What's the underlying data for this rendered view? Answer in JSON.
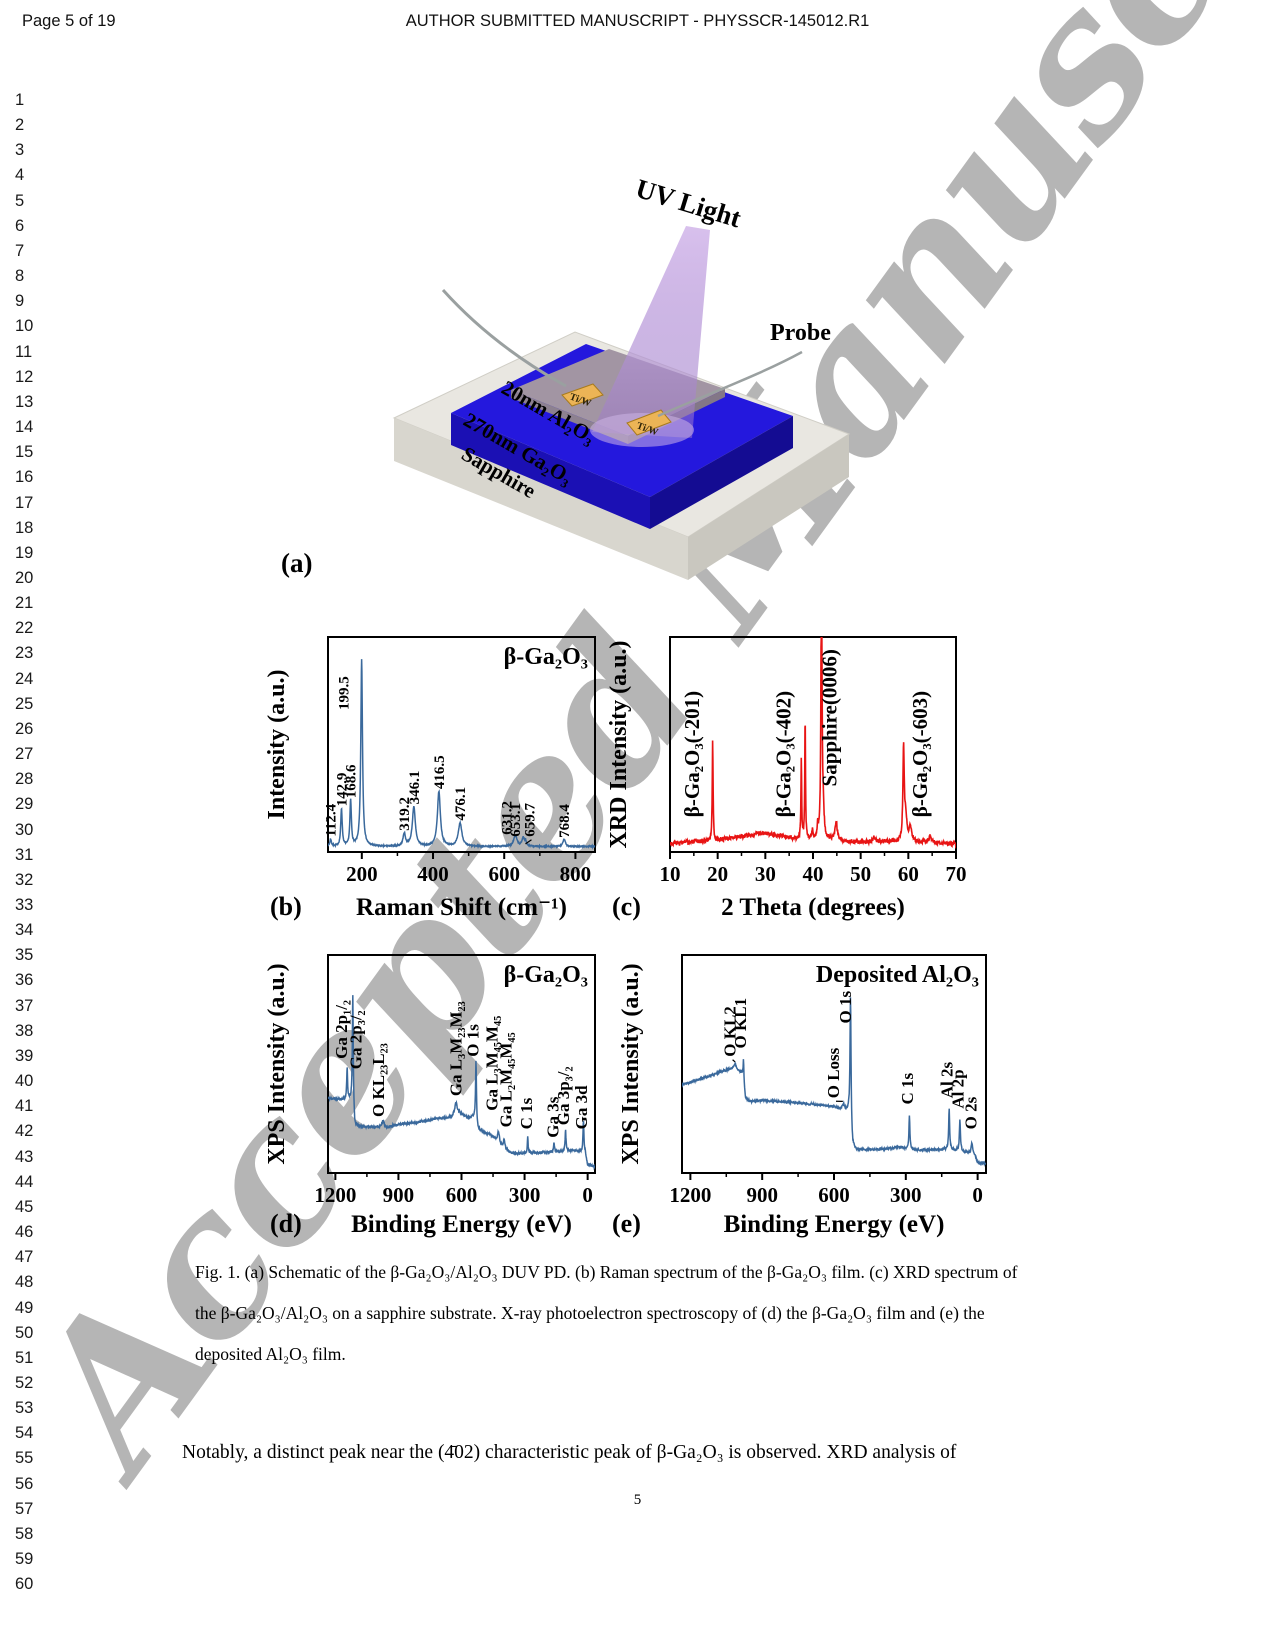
{
  "page": {
    "header_left": "Page 5 of 19",
    "header_center": "AUTHOR SUBMITTED MANUSCRIPT - PHYSSCR-145012.R1",
    "watermark": "Accepted Manuscript",
    "page_number": "5",
    "line_numbers": [
      1,
      2,
      3,
      4,
      5,
      6,
      7,
      8,
      9,
      10,
      11,
      12,
      13,
      14,
      15,
      16,
      17,
      18,
      19,
      20,
      21,
      22,
      23,
      24,
      25,
      26,
      27,
      28,
      29,
      30,
      31,
      32,
      33,
      34,
      35,
      36,
      37,
      38,
      39,
      40,
      41,
      42,
      43,
      44,
      45,
      46,
      47,
      48,
      49,
      50,
      51,
      52,
      53,
      54,
      55,
      56,
      57,
      58,
      59,
      60
    ]
  },
  "figure": {
    "panel_a": {
      "label": "(a)",
      "uv_light": "UV Light",
      "probe": "Probe",
      "electrode1": "Ti/W",
      "electrode2": "Ti/W",
      "layer_top": "20nm Al₂O₃",
      "layer_mid": "270nm Ga₂O₃",
      "layer_base": "Sapphire",
      "colors": {
        "substrate": "#e9e7e1",
        "film_blue": "#2418dd",
        "plate": "#a295a3",
        "pad_gold": "#ecb456",
        "beam": "#b293d8"
      }
    }
  },
  "caption": "Fig. 1. (a) Schematic of the β-Ga₂O₃/Al₂O₃ DUV PD. (b) Raman spectrum of the β-Ga₂O₃ film. (c) XRD spectrum of the β-Ga₂O₃/Al₂O₃ on a sapphire substrate. X-ray photoelectron spectroscopy of (d) the β-Ga₂O₃ film and (e) the deposited Al₂O₃ film.",
  "body_text": "Notably, a distinct peak near the  (4̄02)  characteristic peak of β-Ga₂O₃ is observed. XRD analysis of",
  "chart_data": [
    {
      "panel": "b",
      "type": "line",
      "title": "β-Ga₂O₃",
      "xlabel": "Raman Shift (cm⁻¹)",
      "ylabel": "Intensity (a.u.)",
      "panel_letter": "(b)",
      "color": "#3a699c",
      "seed": 7,
      "noise": 0.003,
      "axis": {
        "xlim": [
          105,
          855
        ],
        "ylim": [
          0,
          1.06
        ],
        "xticks": [
          200,
          400,
          600,
          800
        ],
        "xtick_labels": [
          "200",
          "400",
          "600",
          "800"
        ],
        "minor_ticks": [
          300,
          500,
          700
        ],
        "grid": false
      },
      "background": [
        [
          105,
          0.027
        ],
        [
          855,
          0.027
        ]
      ],
      "peaks": [
        {
          "c": 112.4,
          "h": 0.035,
          "w": 2.5
        },
        {
          "c": 142.9,
          "h": 0.185,
          "w": 2.5
        },
        {
          "c": 168.6,
          "h": 0.225,
          "w": 2.5
        },
        {
          "c": 199.5,
          "h": 0.92,
          "w": 2.8
        },
        {
          "c": 319.2,
          "h": 0.062,
          "w": 4
        },
        {
          "c": 346.1,
          "h": 0.195,
          "w": 5
        },
        {
          "c": 416.5,
          "h": 0.27,
          "w": 5
        },
        {
          "c": 476.1,
          "h": 0.115,
          "w": 6
        },
        {
          "c": 631.2,
          "h": 0.052,
          "w": 6
        },
        {
          "c": 653.1,
          "h": 0.04,
          "w": 3.5
        },
        {
          "c": 659.7,
          "h": 0.028,
          "w": 3
        },
        {
          "c": 768.4,
          "h": 0.036,
          "w": 4
        }
      ],
      "peak_labels": [
        {
          "text": "112.4",
          "x": 112.4,
          "y": 0.075
        },
        {
          "text": "142.9",
          "x": 142.9,
          "y": 0.225
        },
        {
          "text": "168.6",
          "x": 168.6,
          "y": 0.265
        },
        {
          "text": "199.5",
          "x": 199.5,
          "y": 0.7,
          "dx": -13
        },
        {
          "text": "319.2",
          "x": 319.2,
          "y": 0.105
        },
        {
          "text": "346.1",
          "x": 346.1,
          "y": 0.235
        },
        {
          "text": "416.5",
          "x": 416.5,
          "y": 0.31
        },
        {
          "text": "476.1",
          "x": 476.1,
          "y": 0.155
        },
        {
          "text": "631.2",
          "x": 631.2,
          "y": 0.085,
          "dx": -4
        },
        {
          "text": "653.1",
          "x": 653.1,
          "y": 0.075,
          "dx": -3
        },
        {
          "text": "659.7",
          "x": 659.7,
          "y": 0.075,
          "dx": 9,
          "leader": {
            "x": 659.7,
            "y": 0.04
          }
        },
        {
          "text": "768.4",
          "x": 768.4,
          "y": 0.07
        }
      ]
    },
    {
      "panel": "c",
      "type": "line",
      "title": "",
      "xlabel": "2 Theta (degrees)",
      "ylabel": "XRD Intensity (a.u.)",
      "panel_letter": "(c)",
      "color": "#e81414",
      "seed": 3,
      "noise": 0.011,
      "axis": {
        "xlim": [
          10,
          70
        ],
        "ylim": [
          0,
          1.05
        ],
        "xticks": [
          10,
          20,
          30,
          40,
          50,
          60,
          70
        ],
        "xtick_labels": [
          "10",
          "20",
          "30",
          "40",
          "50",
          "60",
          "70"
        ],
        "minor_ticks": [
          15,
          25,
          35,
          45,
          55,
          65
        ],
        "grid": false
      },
      "background": [
        [
          10,
          0.042
        ],
        [
          15,
          0.05
        ],
        [
          20,
          0.058
        ],
        [
          25,
          0.075
        ],
        [
          29,
          0.092
        ],
        [
          31,
          0.09
        ],
        [
          34,
          0.075
        ],
        [
          37,
          0.062
        ],
        [
          40,
          0.06
        ],
        [
          43,
          0.058
        ],
        [
          47,
          0.05
        ],
        [
          52,
          0.048
        ],
        [
          56,
          0.05
        ],
        [
          60,
          0.05
        ],
        [
          64,
          0.045
        ],
        [
          70,
          0.038
        ]
      ],
      "peaks": [
        {
          "c": 18.95,
          "h": 0.5,
          "w": 0.1
        },
        {
          "c": 37.55,
          "h": 0.4,
          "w": 0.09
        },
        {
          "c": 38.35,
          "h": 0.6,
          "w": 0.09
        },
        {
          "c": 39.9,
          "h": 0.05,
          "w": 0.15
        },
        {
          "c": 41.0,
          "h": 0.06,
          "w": 0.12
        },
        {
          "c": 41.78,
          "h": 1.55,
          "w": 0.12
        },
        {
          "c": 42.15,
          "h": 0.12,
          "w": 0.2
        },
        {
          "c": 44.85,
          "h": 0.095,
          "w": 0.28
        },
        {
          "c": 52.9,
          "h": 0.022,
          "w": 0.4
        },
        {
          "c": 59.0,
          "h": 0.46,
          "w": 0.16
        },
        {
          "c": 59.45,
          "h": 0.12,
          "w": 0.3
        },
        {
          "c": 60.45,
          "h": 0.07,
          "w": 0.3
        },
        {
          "c": 64.6,
          "h": 0.032,
          "w": 0.35
        }
      ],
      "peak_labels": [
        {
          "text": "β-Ga₂O₃(-201)",
          "x": 15.0,
          "y": 0.17
        },
        {
          "text": "β-Ga₂O₃(-402)",
          "x": 34.2,
          "y": 0.17
        },
        {
          "text": "Sapphire(0006)",
          "x": 43.9,
          "y": 0.32
        },
        {
          "text": "β-Ga₂O₃(-603)",
          "x": 62.9,
          "y": 0.17
        }
      ]
    },
    {
      "panel": "d",
      "type": "line",
      "title": "β-Ga₂O₃",
      "xlabel": "Binding Energy (eV)",
      "ylabel": "XPS Intensity (a.u.)",
      "panel_letter": "(d)",
      "color": "#3a699c",
      "seed": 11,
      "noise": 0.0055,
      "axis": {
        "xlim": [
          1235,
          -35
        ],
        "ylim": [
          0,
          1.05
        ],
        "xticks": [
          1200,
          900,
          600,
          300,
          0
        ],
        "xtick_labels": [
          "1200",
          "900",
          "600",
          "300",
          "0"
        ],
        "minor_ticks": [
          1050,
          750,
          450,
          150
        ],
        "grid": false
      },
      "background": [
        [
          -35,
          0.03
        ],
        [
          0,
          0.04
        ],
        [
          12,
          0.1
        ],
        [
          70,
          0.108
        ],
        [
          150,
          0.102
        ],
        [
          250,
          0.098
        ],
        [
          355,
          0.093
        ],
        [
          390,
          0.112
        ],
        [
          415,
          0.135
        ],
        [
          435,
          0.16
        ],
        [
          465,
          0.185
        ],
        [
          500,
          0.2
        ],
        [
          522,
          0.21
        ],
        [
          538,
          0.27
        ],
        [
          570,
          0.268
        ],
        [
          610,
          0.29
        ],
        [
          628,
          0.3
        ],
        [
          645,
          0.272
        ],
        [
          720,
          0.262
        ],
        [
          820,
          0.243
        ],
        [
          920,
          0.232
        ],
        [
          958,
          0.218
        ],
        [
          970,
          0.232
        ],
        [
          982,
          0.222
        ],
        [
          1055,
          0.222
        ],
        [
          1108,
          0.225
        ],
        [
          1118,
          0.35
        ],
        [
          1235,
          0.36
        ]
      ],
      "peaks": [
        {
          "c": 1144,
          "h": 0.155,
          "w": 2.5
        },
        {
          "c": 1117,
          "h": 0.52,
          "w": 2.5
        },
        {
          "c": 975,
          "h": 0.025,
          "w": 5
        },
        {
          "c": 626,
          "h": 0.04,
          "w": 6
        },
        {
          "c": 531,
          "h": 0.3,
          "w": 2.5
        },
        {
          "c": 424,
          "h": 0.055,
          "w": 5
        },
        {
          "c": 397,
          "h": 0.045,
          "w": 4
        },
        {
          "c": 285,
          "h": 0.075,
          "w": 2.2
        },
        {
          "c": 160,
          "h": 0.045,
          "w": 2.5
        },
        {
          "c": 105,
          "h": 0.1,
          "w": 2.5
        },
        {
          "c": 20,
          "h": 0.155,
          "w": 2.5
        }
      ],
      "peak_labels": [
        {
          "text": "Ga 2p₁/₂",
          "x": 1168,
          "y": 0.55
        },
        {
          "text": "Ga 2p₃/₂",
          "x": 1100,
          "y": 0.5
        },
        {
          "text": "O KL₂₃L₂₃",
          "x": 992,
          "y": 0.27
        },
        {
          "text": "Ga L₃M₂₃M₂₃",
          "x": 624,
          "y": 0.37
        },
        {
          "text": "O 1s",
          "x": 542,
          "y": 0.56
        },
        {
          "text": "Ga L₃M₄₅M₄₅",
          "x": 452,
          "y": 0.3
        },
        {
          "text": "Ga L₂M₄₅M₄₅",
          "x": 386,
          "y": 0.22
        },
        {
          "text": "C 1s",
          "x": 288,
          "y": 0.21
        },
        {
          "text": "Ga 3s",
          "x": 162,
          "y": 0.17
        },
        {
          "text": "Ga 3p₃/₂",
          "x": 112,
          "y": 0.23
        },
        {
          "text": "Ga 3d",
          "x": 26,
          "y": 0.21
        }
      ]
    },
    {
      "panel": "e",
      "type": "line",
      "title": "Deposited Al₂O₃",
      "xlabel": "Binding Energy (eV)",
      "ylabel": "XPS Intensity (a.u.)",
      "panel_letter": "(e)",
      "color": "#3a699c",
      "seed": 5,
      "noise": 0.0055,
      "axis": {
        "xlim": [
          1235,
          -35
        ],
        "ylim": [
          0,
          1.05
        ],
        "xticks": [
          1200,
          900,
          600,
          300,
          0
        ],
        "xtick_labels": [
          "1200",
          "900",
          "600",
          "300",
          "0"
        ],
        "minor_ticks": [
          1050,
          750,
          450,
          150
        ],
        "grid": false
      },
      "background": [
        [
          -35,
          0.045
        ],
        [
          0,
          0.05
        ],
        [
          15,
          0.095
        ],
        [
          40,
          0.1
        ],
        [
          70,
          0.105
        ],
        [
          110,
          0.112
        ],
        [
          150,
          0.115
        ],
        [
          230,
          0.11
        ],
        [
          300,
          0.118
        ],
        [
          330,
          0.125
        ],
        [
          370,
          0.118
        ],
        [
          440,
          0.113
        ],
        [
          505,
          0.112
        ],
        [
          522,
          0.125
        ],
        [
          538,
          0.29
        ],
        [
          560,
          0.3
        ],
        [
          585,
          0.312
        ],
        [
          620,
          0.322
        ],
        [
          700,
          0.332
        ],
        [
          800,
          0.342
        ],
        [
          900,
          0.35
        ],
        [
          950,
          0.345
        ],
        [
          970,
          0.36
        ],
        [
          984,
          0.48
        ],
        [
          995,
          0.49
        ],
        [
          1008,
          0.5
        ],
        [
          1018,
          0.505
        ],
        [
          1040,
          0.5
        ],
        [
          1080,
          0.485
        ],
        [
          1140,
          0.46
        ],
        [
          1235,
          0.425
        ]
      ],
      "peaks": [
        {
          "c": 1013,
          "h": 0.028,
          "w": 4
        },
        {
          "c": 978,
          "h": 0.115,
          "w": 2.2
        },
        {
          "c": 560,
          "h": 0.03,
          "w": 7
        },
        {
          "c": 531,
          "h": 0.64,
          "w": 2.5
        },
        {
          "c": 285,
          "h": 0.165,
          "w": 2.2
        },
        {
          "c": 119,
          "h": 0.195,
          "w": 2.5
        },
        {
          "c": 74,
          "h": 0.155,
          "w": 2.5
        },
        {
          "c": 24,
          "h": 0.05,
          "w": 3
        }
      ],
      "peak_labels": [
        {
          "text": "O KL2",
          "x": 1032,
          "y": 0.56,
          "leader": {
            "x": 1013,
            "y": 0.535
          }
        },
        {
          "text": "O KL1",
          "x": 988,
          "y": 0.6
        },
        {
          "text": "O Loss",
          "x": 600,
          "y": 0.36,
          "leader": {
            "x": 563,
            "y": 0.345
          }
        },
        {
          "text": "O 1s",
          "x": 550,
          "y": 0.72
        },
        {
          "text": "C 1s",
          "x": 290,
          "y": 0.33
        },
        {
          "text": "Al 2s",
          "x": 126,
          "y": 0.36
        },
        {
          "text": "Al 2p",
          "x": 80,
          "y": 0.31
        },
        {
          "text": "O 2s",
          "x": 26,
          "y": 0.21
        }
      ]
    }
  ]
}
